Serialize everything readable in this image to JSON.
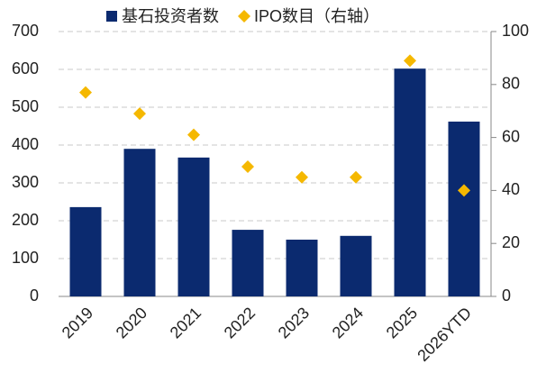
{
  "chart_data": {
    "type": "bar",
    "categories": [
      "2019",
      "2020",
      "2021",
      "2022",
      "2023",
      "2024",
      "2025",
      "2026YTD"
    ],
    "series": [
      {
        "name": "基石投资者数",
        "type": "bar",
        "axis": "y",
        "color": "#0b2a6f",
        "values": [
          236,
          390,
          367,
          176,
          150,
          160,
          602,
          462
        ]
      },
      {
        "name": "IPO数目（右轴）",
        "type": "scatter",
        "axis": "y2",
        "color": "#f5b800",
        "values": [
          77,
          69,
          61,
          49,
          45,
          45,
          89,
          40
        ]
      }
    ],
    "ylim": [
      0,
      700
    ],
    "yticks": [
      0,
      100,
      200,
      300,
      400,
      500,
      600,
      700
    ],
    "y2lim": [
      0,
      100
    ],
    "y2ticks": [
      0,
      20,
      40,
      60,
      80,
      100
    ],
    "grid": true,
    "legend": "top"
  }
}
